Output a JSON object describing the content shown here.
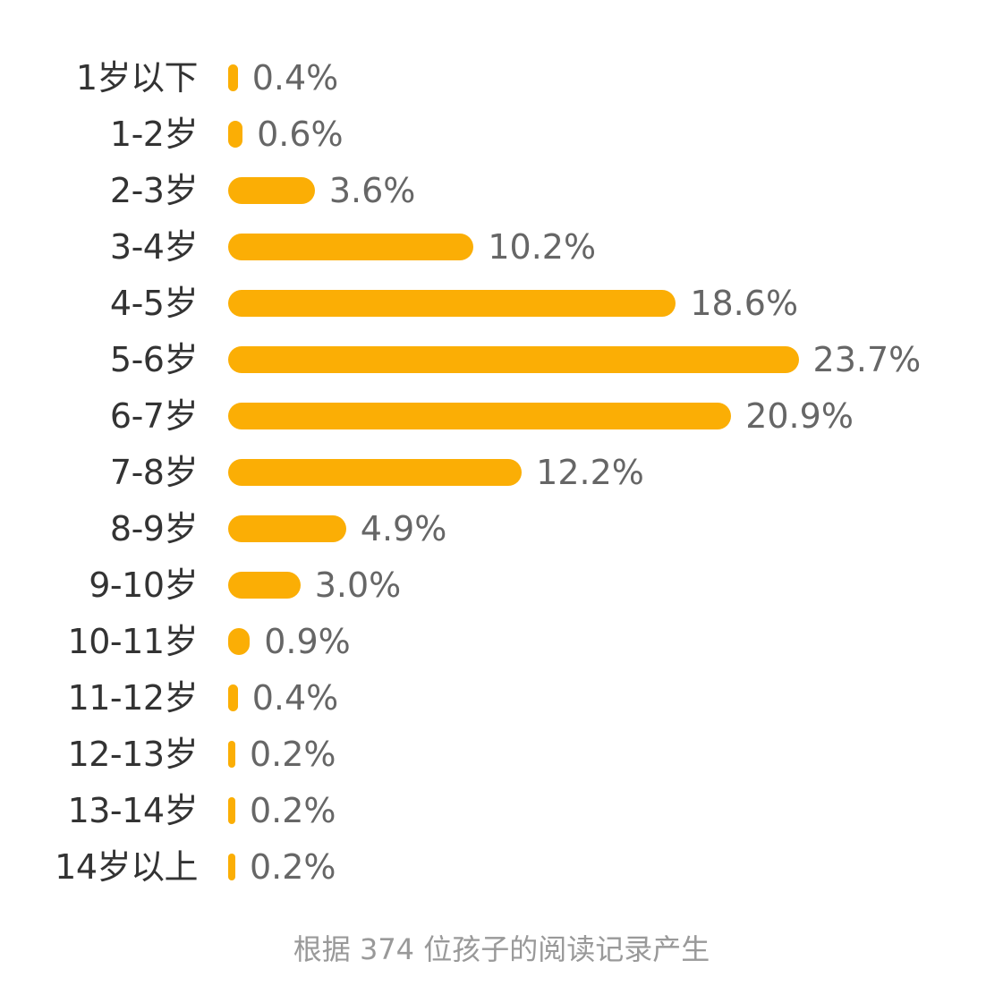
{
  "chart_data": {
    "type": "bar",
    "orientation": "horizontal",
    "title": "",
    "xlabel": "",
    "ylabel": "",
    "categories": [
      "1岁以下",
      "1-2岁",
      "2-3岁",
      "3-4岁",
      "4-5岁",
      "5-6岁",
      "6-7岁",
      "7-8岁",
      "8-9岁",
      "9-10岁",
      "10-11岁",
      "11-12岁",
      "12-13岁",
      "13-14岁",
      "14岁以上"
    ],
    "values": [
      0.4,
      0.6,
      3.6,
      10.2,
      18.6,
      23.7,
      20.9,
      12.2,
      4.9,
      3.0,
      0.9,
      0.4,
      0.2,
      0.2,
      0.2
    ],
    "value_labels": [
      "0.4%",
      "0.6%",
      "3.6%",
      "10.2%",
      "18.6%",
      "23.7%",
      "20.9%",
      "12.2%",
      "4.9%",
      "3.0%",
      "0.9%",
      "0.4%",
      "0.2%",
      "0.2%",
      "0.2%"
    ],
    "unit": "%",
    "grid": false,
    "legend": null,
    "bar_color": "#FBAE05",
    "note": "根据 374 位孩子的阅读记录产生"
  },
  "footer": {
    "text": "根据 374 位孩子的阅读记录产生"
  }
}
